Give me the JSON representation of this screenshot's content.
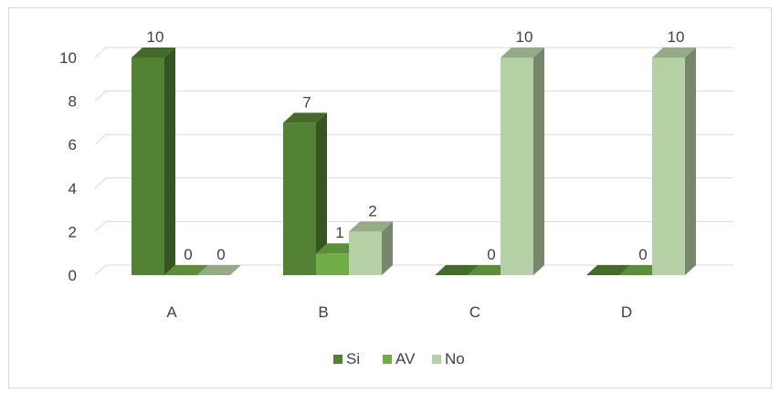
{
  "chart_data": {
    "type": "bar",
    "variant": "3d-clustered-column",
    "categories": [
      "A",
      "B",
      "C",
      "D"
    ],
    "series": [
      {
        "name": "Si",
        "values": [
          10,
          7,
          0,
          0
        ],
        "color": "#548235"
      },
      {
        "name": "AV",
        "values": [
          0,
          1,
          0,
          0
        ],
        "color": "#70ad47"
      },
      {
        "name": "No",
        "values": [
          0,
          2,
          10,
          10
        ],
        "color": "#b5d0a4"
      }
    ],
    "data_labels": [
      {
        "category": "A",
        "series": "Si",
        "text": "10"
      },
      {
        "category": "A",
        "series": "AV",
        "text": "0"
      },
      {
        "category": "A",
        "series": "No",
        "text": "0"
      },
      {
        "category": "B",
        "series": "Si",
        "text": "7"
      },
      {
        "category": "B",
        "series": "AV",
        "text": "1"
      },
      {
        "category": "B",
        "series": "No",
        "text": "2"
      },
      {
        "category": "C",
        "series": "AV",
        "text": "0"
      },
      {
        "category": "C",
        "series": "No",
        "text": "10"
      },
      {
        "category": "D",
        "series": "AV",
        "text": "0"
      },
      {
        "category": "D",
        "series": "No",
        "text": "10"
      }
    ],
    "y_ticks": [
      "0",
      "2",
      "4",
      "6",
      "8",
      "10"
    ],
    "ylim": [
      0,
      10
    ],
    "grid": true,
    "legend_position": "bottom",
    "title": "",
    "xlabel": "",
    "ylabel": ""
  }
}
